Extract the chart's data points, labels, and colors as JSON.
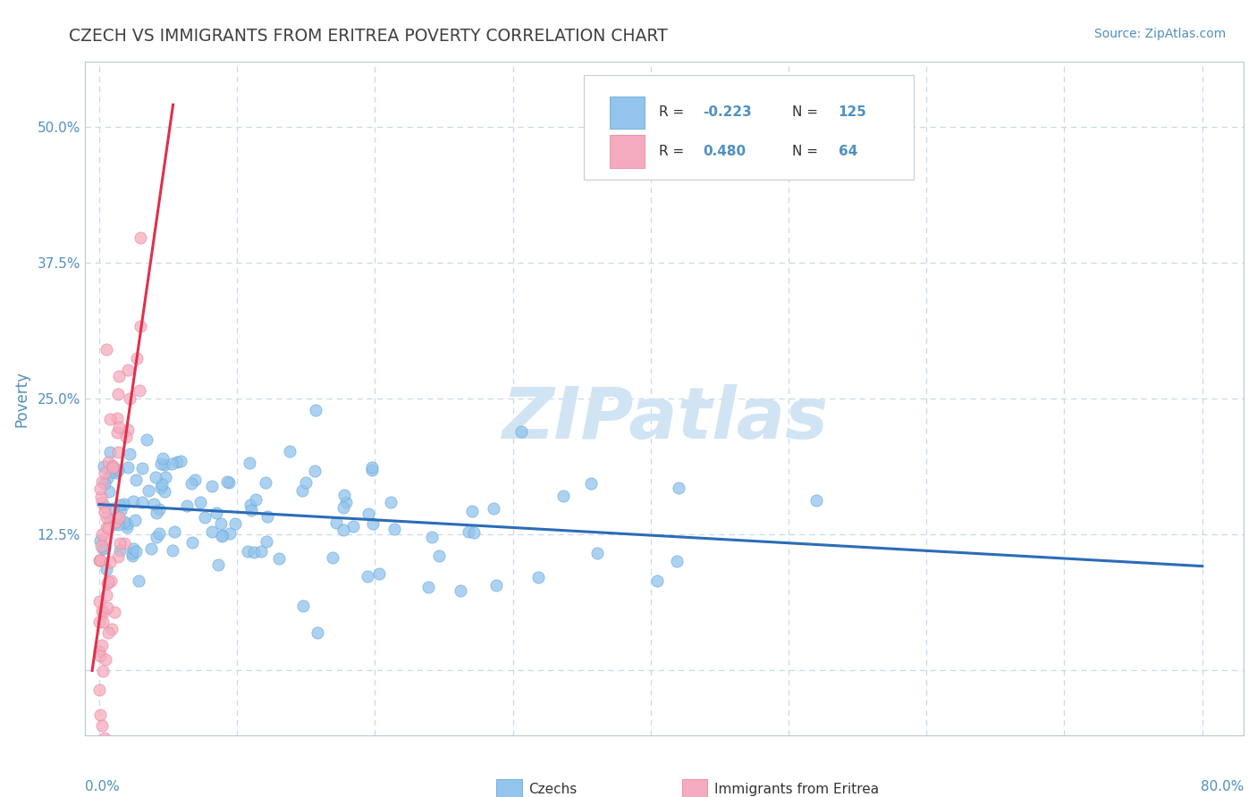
{
  "title": "CZECH VS IMMIGRANTS FROM ERITREA POVERTY CORRELATION CHART",
  "source_text": "Source: ZipAtlas.com",
  "ylabel": "Poverty",
  "yticks": [
    0.0,
    0.125,
    0.25,
    0.375,
    0.5
  ],
  "ytick_labels": [
    "",
    "12.5%",
    "25.0%",
    "37.5%",
    "50.0%"
  ],
  "xlim": [
    -0.01,
    0.83
  ],
  "ylim": [
    -0.06,
    0.56
  ],
  "czech_color": "#92C4ED",
  "eritrea_color": "#F5ABBE",
  "czech_edge": "#6AAAD8",
  "eritrea_edge": "#E888A0",
  "trend_czech_color": "#2B6CB8",
  "trend_eritrea_color": "#E0304A",
  "background_color": "#FFFFFF",
  "grid_color": "#C8D8EC",
  "watermark_color": "#D0E4F4",
  "title_color": "#404040",
  "source_color": "#5090C0",
  "axis_label_color": "#5090C0",
  "tick_label_color": "#5090C0",
  "czechs_seed": 42,
  "eritrea_seed": 99,
  "n_czech": 125,
  "n_eritrea": 64
}
